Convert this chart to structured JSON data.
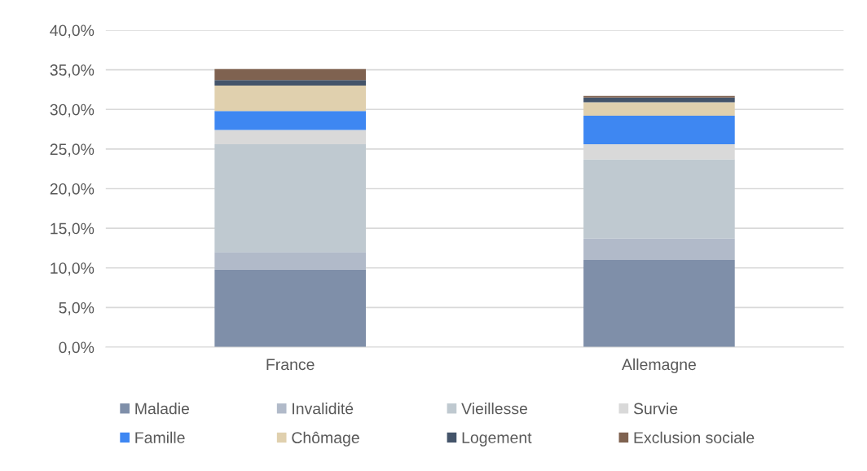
{
  "chart_data": {
    "type": "bar",
    "stacked": true,
    "categories": [
      "France",
      "Allemagne"
    ],
    "series": [
      {
        "name": "Maladie",
        "color": "#7f8fa9",
        "values": [
          9.8,
          11.0
        ]
      },
      {
        "name": "Invalidité",
        "color": "#b1bac9",
        "values": [
          2.2,
          2.7
        ]
      },
      {
        "name": "Vieillesse",
        "color": "#bfc9d0",
        "values": [
          13.6,
          10.0
        ]
      },
      {
        "name": "Survie",
        "color": "#d9d9d9",
        "values": [
          1.8,
          1.9
        ]
      },
      {
        "name": "Famille",
        "color": "#3e87f2",
        "values": [
          2.4,
          3.6
        ]
      },
      {
        "name": "Chômage",
        "color": "#e0d0ae",
        "values": [
          3.2,
          1.7
        ]
      },
      {
        "name": "Logement",
        "color": "#44546a",
        "values": [
          0.7,
          0.6
        ]
      },
      {
        "name": "Exclusion sociale",
        "color": "#7f6250",
        "values": [
          1.4,
          0.2
        ]
      }
    ],
    "ylim": [
      0,
      40
    ],
    "yticks": [
      {
        "value": 0,
        "label": "0,0%"
      },
      {
        "value": 5,
        "label": "5,0%"
      },
      {
        "value": 10,
        "label": "10,0%"
      },
      {
        "value": 15,
        "label": "15,0%"
      },
      {
        "value": 20,
        "label": "20,0%"
      },
      {
        "value": 25,
        "label": "25,0%"
      },
      {
        "value": 30,
        "label": "30,0%"
      },
      {
        "value": 35,
        "label": "35,0%"
      },
      {
        "value": 40,
        "label": "40,0%"
      }
    ],
    "grid": "y",
    "legend": "bottom"
  }
}
